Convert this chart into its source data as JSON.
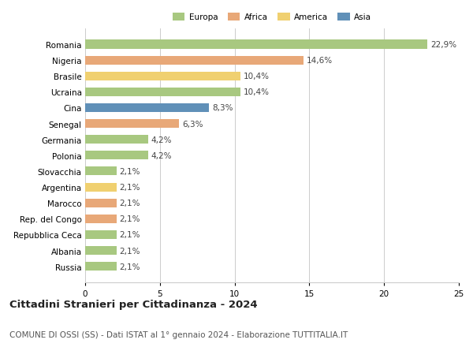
{
  "categories": [
    "Romania",
    "Nigeria",
    "Brasile",
    "Ucraina",
    "Cina",
    "Senegal",
    "Germania",
    "Polonia",
    "Slovacchia",
    "Argentina",
    "Marocco",
    "Rep. del Congo",
    "Repubblica Ceca",
    "Albania",
    "Russia"
  ],
  "values": [
    22.9,
    14.6,
    10.4,
    10.4,
    8.3,
    6.3,
    4.2,
    4.2,
    2.1,
    2.1,
    2.1,
    2.1,
    2.1,
    2.1,
    2.1
  ],
  "labels": [
    "22,9%",
    "14,6%",
    "10,4%",
    "10,4%",
    "8,3%",
    "6,3%",
    "4,2%",
    "4,2%",
    "2,1%",
    "2,1%",
    "2,1%",
    "2,1%",
    "2,1%",
    "2,1%",
    "2,1%"
  ],
  "colors": [
    "#a8c880",
    "#e8a878",
    "#f0d070",
    "#a8c880",
    "#6090b8",
    "#e8a878",
    "#a8c880",
    "#a8c880",
    "#a8c880",
    "#f0d070",
    "#e8a878",
    "#e8a878",
    "#a8c880",
    "#a8c880",
    "#a8c880"
  ],
  "legend": {
    "Europa": "#a8c880",
    "Africa": "#e8a878",
    "America": "#f0d070",
    "Asia": "#6090b8"
  },
  "xlim": [
    0,
    25
  ],
  "xticks": [
    0,
    5,
    10,
    15,
    20,
    25
  ],
  "title": "Cittadini Stranieri per Cittadinanza - 2024",
  "subtitle": "COMUNE DI OSSI (SS) - Dati ISTAT al 1° gennaio 2024 - Elaborazione TUTTITALIA.IT",
  "background_color": "#ffffff",
  "bar_height": 0.55,
  "grid_color": "#cccccc",
  "label_fontsize": 7.5,
  "tick_fontsize": 7.5,
  "title_fontsize": 9.5,
  "subtitle_fontsize": 7.5
}
